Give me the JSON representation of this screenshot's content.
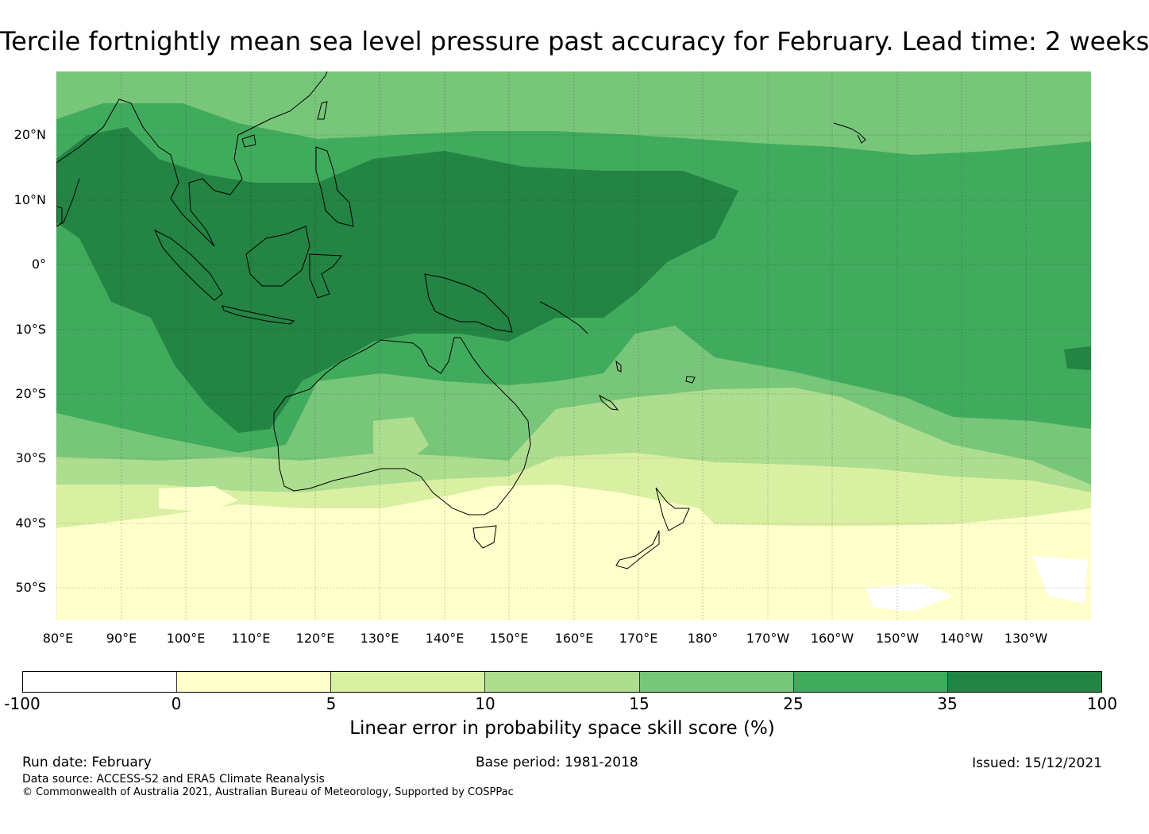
{
  "title": "Tercile fortnightly mean sea level pressure past accuracy for February. Lead time: 2 weeks",
  "lat_labels": [
    "20°N",
    "10°N",
    "0°",
    "10°S",
    "20°S",
    "30°S",
    "40°S",
    "50°S"
  ],
  "lon_labels": [
    "80°E",
    "90°E",
    "100°E",
    "110°E",
    "120°E",
    "130°E",
    "140°E",
    "150°E",
    "160°E",
    "170°E",
    "180°",
    "170°W",
    "160°W",
    "150°W",
    "140°W",
    "130°W"
  ],
  "map": {
    "lat_range": [
      -55.5,
      29.5
    ],
    "lon_range": [
      80,
      240
    ],
    "coastline_color": "#000000"
  },
  "colorbar": {
    "ticks": [
      "-100",
      "0",
      "5",
      "10",
      "15",
      "25",
      "35",
      "100"
    ],
    "colors": [
      "#ffffff",
      "#ffffcc",
      "#d9f0a3",
      "#addd8e",
      "#78c679",
      "#41ab5d",
      "#238443"
    ],
    "label": "Linear error in probability space skill score (%)"
  },
  "footer": {
    "run_date": "Run date: February",
    "base_period": "Base period: 1981-2018",
    "issued": "Issued: 15/12/2021",
    "data_source": "Data source: ACCESS-S2 and ERA5 Climate Reanalysis",
    "copyright": "© Commonwealth of Australia 2021, Australian Bureau of Meteorology, Supported by COSPPac"
  }
}
